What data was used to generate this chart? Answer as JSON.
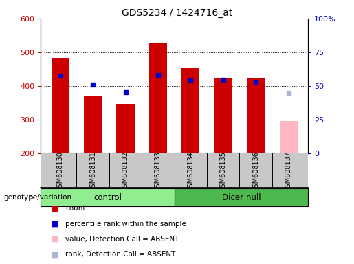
{
  "title": "GDS5234 / 1424716_at",
  "samples": [
    "GSM608130",
    "GSM608131",
    "GSM608132",
    "GSM608133",
    "GSM608134",
    "GSM608135",
    "GSM608136",
    "GSM608137"
  ],
  "count_values": [
    483,
    370,
    347,
    527,
    453,
    423,
    422,
    null
  ],
  "rank_values": [
    430,
    403,
    381,
    433,
    415,
    418,
    412,
    null
  ],
  "absent_value": 295,
  "absent_rank": 380,
  "ylim_left": [
    200,
    600
  ],
  "ylim_right": [
    0,
    100
  ],
  "yticks_left": [
    200,
    300,
    400,
    500,
    600
  ],
  "yticks_right": [
    0,
    25,
    50,
    75,
    100
  ],
  "color_bar": "#cc0000",
  "color_rank": "#0000cc",
  "color_absent_bar": "#ffb6c1",
  "color_absent_rank": "#aab4d4",
  "color_bg_xtick": "#c8c8c8",
  "color_control_group": "#90ee90",
  "color_dicernull_group": "#4db84d",
  "bar_width": 0.55
}
